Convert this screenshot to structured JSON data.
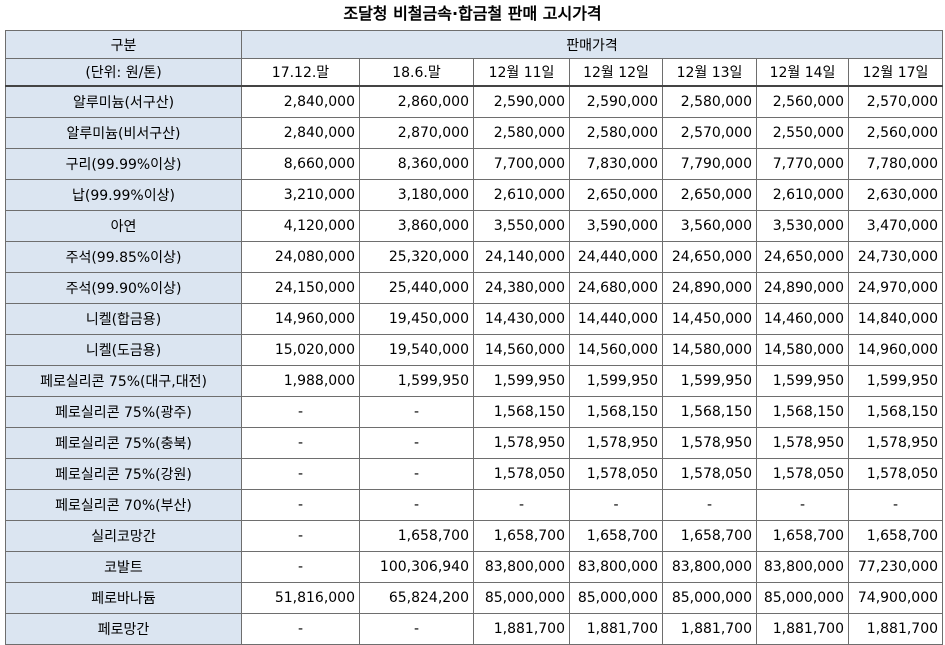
{
  "title": "조달청 비철금속·합금철 판매 고시가격",
  "header": {
    "category_label": "구분",
    "unit_label": "(단위: 원/톤)",
    "price_group_label": "판매가격",
    "columns": [
      "17.12.말",
      "18.6.말",
      "12월 11일",
      "12월 12일",
      "12월 13일",
      "12월 14일",
      "12월 17일"
    ]
  },
  "rows": [
    {
      "name": "알루미늄(서구산)",
      "values": [
        "2,840,000",
        "2,860,000",
        "2,590,000",
        "2,590,000",
        "2,580,000",
        "2,560,000",
        "2,570,000"
      ]
    },
    {
      "name": "알루미늄(비서구산)",
      "values": [
        "2,840,000",
        "2,870,000",
        "2,580,000",
        "2,580,000",
        "2,570,000",
        "2,550,000",
        "2,560,000"
      ]
    },
    {
      "name": "구리(99.99%이상)",
      "values": [
        "8,660,000",
        "8,360,000",
        "7,700,000",
        "7,830,000",
        "7,790,000",
        "7,770,000",
        "7,780,000"
      ]
    },
    {
      "name": "납(99.99%이상)",
      "values": [
        "3,210,000",
        "3,180,000",
        "2,610,000",
        "2,650,000",
        "2,650,000",
        "2,610,000",
        "2,630,000"
      ]
    },
    {
      "name": "아연",
      "values": [
        "4,120,000",
        "3,860,000",
        "3,550,000",
        "3,590,000",
        "3,560,000",
        "3,530,000",
        "3,470,000"
      ]
    },
    {
      "name": "주석(99.85%이상)",
      "values": [
        "24,080,000",
        "25,320,000",
        "24,140,000",
        "24,440,000",
        "24,650,000",
        "24,650,000",
        "24,730,000"
      ]
    },
    {
      "name": "주석(99.90%이상)",
      "values": [
        "24,150,000",
        "25,440,000",
        "24,380,000",
        "24,680,000",
        "24,890,000",
        "24,890,000",
        "24,970,000"
      ]
    },
    {
      "name": "니켈(합금용)",
      "values": [
        "14,960,000",
        "19,450,000",
        "14,430,000",
        "14,440,000",
        "14,450,000",
        "14,460,000",
        "14,840,000"
      ]
    },
    {
      "name": "니켈(도금용)",
      "values": [
        "15,020,000",
        "19,540,000",
        "14,560,000",
        "14,560,000",
        "14,580,000",
        "14,580,000",
        "14,960,000"
      ]
    },
    {
      "name": "페로실리콘 75%(대구,대전)",
      "values": [
        "1,988,000",
        "1,599,950",
        "1,599,950",
        "1,599,950",
        "1,599,950",
        "1,599,950",
        "1,599,950"
      ]
    },
    {
      "name": "페로실리콘 75%(광주)",
      "values": [
        "-",
        "-",
        "1,568,150",
        "1,568,150",
        "1,568,150",
        "1,568,150",
        "1,568,150"
      ]
    },
    {
      "name": "페로실리콘 75%(충북)",
      "values": [
        "-",
        "-",
        "1,578,950",
        "1,578,950",
        "1,578,950",
        "1,578,950",
        "1,578,950"
      ]
    },
    {
      "name": "페로실리콘 75%(강원)",
      "values": [
        "-",
        "-",
        "1,578,050",
        "1,578,050",
        "1,578,050",
        "1,578,050",
        "1,578,050"
      ]
    },
    {
      "name": "페로실리콘 70%(부산)",
      "values": [
        "-",
        "-",
        "-",
        "-",
        "-",
        "-",
        "-"
      ]
    },
    {
      "name": "실리코망간",
      "values": [
        "-",
        "1,658,700",
        "1,658,700",
        "1,658,700",
        "1,658,700",
        "1,658,700",
        "1,658,700"
      ]
    },
    {
      "name": "코발트",
      "values": [
        "-",
        "100,306,940",
        "83,800,000",
        "83,800,000",
        "83,800,000",
        "83,800,000",
        "77,230,000"
      ]
    },
    {
      "name": "페로바나듐",
      "values": [
        "51,816,000",
        "65,824,200",
        "85,000,000",
        "85,000,000",
        "85,000,000",
        "85,000,000",
        "74,900,000"
      ]
    },
    {
      "name": "페로망간",
      "values": [
        "-",
        "-",
        "1,881,700",
        "1,881,700",
        "1,881,700",
        "1,881,700",
        "1,881,700"
      ]
    }
  ]
}
